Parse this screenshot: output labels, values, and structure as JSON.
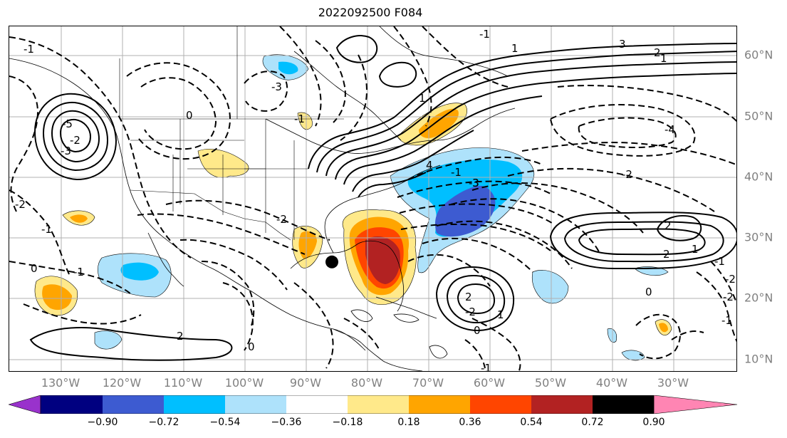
{
  "title": "2022092500 F084",
  "map": {
    "extent": {
      "lon": [
        -137,
        -18
      ],
      "lat": [
        8,
        65
      ]
    },
    "lon_labels": [
      "130°W",
      "120°W",
      "110°W",
      "100°W",
      "90°W",
      "80°W",
      "70°W",
      "60°W",
      "50°W",
      "40°W",
      "30°W"
    ],
    "lat_labels": [
      "60°N",
      "50°N",
      "40°N",
      "30°N",
      "20°N",
      "10°N"
    ],
    "marker": {
      "lon": -84.3,
      "lat": 26.2,
      "color": "#000000"
    },
    "contour_labels": [
      "-1",
      "-1",
      "-3",
      "-4",
      "-2",
      "-1",
      "-1",
      "-2",
      "-2",
      "-3",
      "-1",
      "-1",
      "-5",
      "-2",
      "-3",
      "0",
      "0",
      "0",
      "1",
      "1",
      "1",
      "1",
      "1",
      "2",
      "2",
      "2",
      "2",
      "3",
      "3",
      "4",
      "-1",
      "0",
      "0",
      "-2",
      "2",
      "-1",
      "-1",
      "-2",
      "-2"
    ]
  },
  "colorbar": {
    "levels": [
      -0.9,
      -0.72,
      -0.54,
      -0.36,
      -0.18,
      0.18,
      0.36,
      0.54,
      0.72,
      0.9
    ],
    "tick_labels": [
      "−0.90",
      "−0.72",
      "−0.54",
      "−0.36",
      "−0.18",
      "0.18",
      "0.36",
      "0.54",
      "0.72",
      "0.90"
    ],
    "colors": [
      "#9932cc",
      "#000080",
      "#3d5bd1",
      "#00bfff",
      "#aee2fb",
      "#ffffff",
      "#ffe98a",
      "#ffa500",
      "#ff4500",
      "#b22222",
      "#ff85b3"
    ]
  }
}
